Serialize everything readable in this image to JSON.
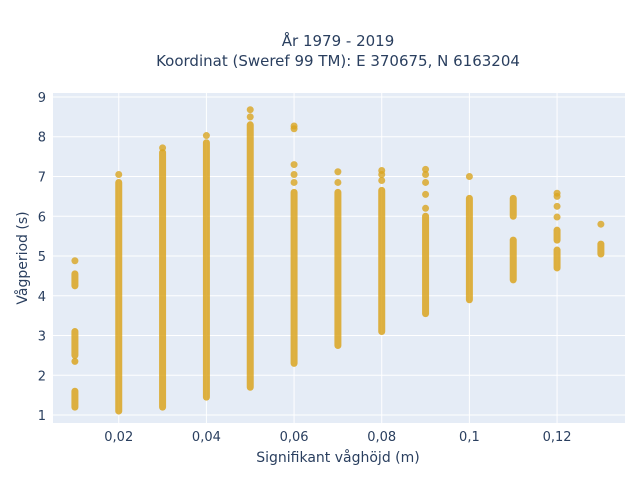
{
  "chart_data": {
    "type": "scatter",
    "title": "År 1979 - 2019",
    "subtitle": "Koordinat (Sweref 99 TM): E 370675, N 6163204",
    "xlabel": "Signifikant våghöjd (m)",
    "ylabel": "Vågperiod (s)",
    "xlim": [
      0.005,
      0.1355
    ],
    "ylim": [
      0.8,
      9.1
    ],
    "x_ticks": [
      {
        "value": 0.02,
        "label": "0,02"
      },
      {
        "value": 0.04,
        "label": "0,04"
      },
      {
        "value": 0.06,
        "label": "0,06"
      },
      {
        "value": 0.08,
        "label": "0,08"
      },
      {
        "value": 0.1,
        "label": "0,1"
      },
      {
        "value": 0.12,
        "label": "0,12"
      }
    ],
    "y_ticks": [
      {
        "value": 1,
        "label": "1"
      },
      {
        "value": 2,
        "label": "2"
      },
      {
        "value": 3,
        "label": "3"
      },
      {
        "value": 4,
        "label": "4"
      },
      {
        "value": 5,
        "label": "5"
      },
      {
        "value": 6,
        "label": "6"
      },
      {
        "value": 7,
        "label": "7"
      },
      {
        "value": 8,
        "label": "8"
      },
      {
        "value": 9,
        "label": "9"
      }
    ],
    "grid": true,
    "marker_color": "#DAA520",
    "columns": [
      {
        "x": 0.01,
        "bands": [
          [
            1.2,
            1.6
          ],
          [
            2.35,
            2.35
          ],
          [
            2.5,
            3.1
          ],
          [
            4.25,
            4.55
          ]
        ],
        "points": [
          4.88
        ]
      },
      {
        "x": 0.02,
        "bands": [
          [
            1.1,
            6.85
          ]
        ],
        "points": [
          7.05
        ]
      },
      {
        "x": 0.03,
        "bands": [
          [
            1.2,
            7.6
          ]
        ],
        "points": [
          7.72
        ]
      },
      {
        "x": 0.04,
        "bands": [
          [
            1.45,
            7.85
          ]
        ],
        "points": [
          8.03
        ]
      },
      {
        "x": 0.05,
        "bands": [
          [
            1.7,
            8.3
          ]
        ],
        "points": [
          8.5,
          8.68
        ]
      },
      {
        "x": 0.06,
        "bands": [
          [
            2.3,
            6.6
          ]
        ],
        "points": [
          6.85,
          7.05,
          7.3,
          8.2,
          8.27
        ]
      },
      {
        "x": 0.07,
        "bands": [
          [
            2.75,
            6.6
          ]
        ],
        "points": [
          6.85,
          7.12
        ]
      },
      {
        "x": 0.08,
        "bands": [
          [
            3.1,
            6.65
          ]
        ],
        "points": [
          6.9,
          7.05,
          7.15
        ]
      },
      {
        "x": 0.09,
        "bands": [
          [
            3.55,
            6.0
          ]
        ],
        "points": [
          6.2,
          6.55,
          6.85,
          7.05,
          7.18
        ]
      },
      {
        "x": 0.1,
        "bands": [
          [
            3.9,
            6.45
          ]
        ],
        "points": [
          7.0
        ]
      },
      {
        "x": 0.11,
        "bands": [
          [
            4.4,
            5.4
          ],
          [
            6.0,
            6.45
          ]
        ],
        "points": []
      },
      {
        "x": 0.12,
        "bands": [
          [
            4.7,
            5.15
          ],
          [
            5.4,
            5.65
          ]
        ],
        "points": [
          5.98,
          6.25,
          6.5,
          6.58
        ]
      },
      {
        "x": 0.13,
        "bands": [
          [
            5.05,
            5.3
          ]
        ],
        "points": [
          5.8
        ]
      }
    ]
  }
}
